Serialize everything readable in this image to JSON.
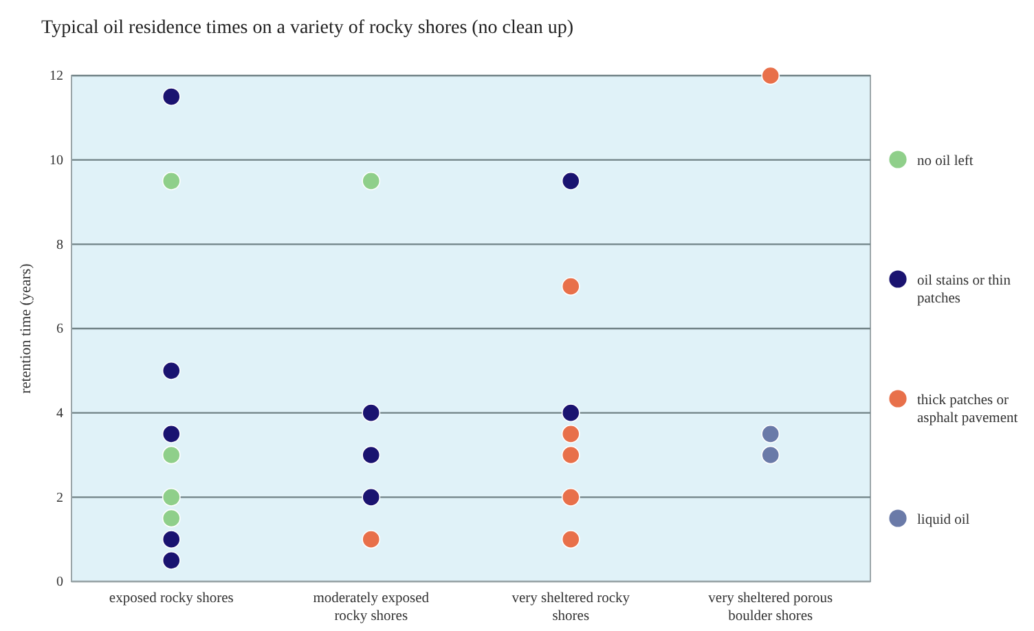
{
  "chart_data": {
    "type": "scatter",
    "title": "Typical oil residence times on a variety of rocky shores (no clean up)",
    "ylabel": "retention time (years)",
    "categories": [
      "exposed rocky shores",
      "moderately exposed rocky shores",
      "very sheltered rocky shores",
      "very sheltered porous boulder shores"
    ],
    "ylim": [
      0,
      12
    ],
    "yticks": [
      0,
      2,
      4,
      6,
      8,
      10,
      12
    ],
    "grid": "y",
    "legend": "right",
    "marker": "circle",
    "series": [
      {
        "name": "no oil left",
        "color": "#8fcf8a",
        "x": [
          "exposed rocky shores",
          "exposed rocky shores",
          "exposed rocky shores",
          "exposed rocky shores",
          "moderately exposed rocky shores"
        ],
        "values": [
          9.5,
          3,
          2,
          1.5,
          9.5
        ]
      },
      {
        "name": "oil stains or thin patches",
        "color": "#1a1370",
        "x": [
          "exposed rocky shores",
          "exposed rocky shores",
          "exposed rocky shores",
          "exposed rocky shores",
          "exposed rocky shores",
          "moderately exposed rocky shores",
          "moderately exposed rocky shores",
          "moderately exposed rocky shores",
          "very sheltered rocky shores",
          "very sheltered rocky shores"
        ],
        "values": [
          11.5,
          5,
          3.5,
          1,
          0.5,
          4,
          3,
          2,
          9.5,
          4
        ]
      },
      {
        "name": "thick patches or asphalt pavement",
        "color": "#e8704a",
        "x": [
          "moderately exposed rocky shores",
          "very sheltered rocky shores",
          "very sheltered rocky shores",
          "very sheltered rocky shores",
          "very sheltered rocky shores",
          "very sheltered rocky shores",
          "very sheltered porous boulder shores"
        ],
        "values": [
          1,
          7,
          3.5,
          3,
          2,
          1,
          12
        ]
      },
      {
        "name": "liquid oil",
        "color": "#6a7aa8",
        "x": [
          "very sheltered porous boulder shores",
          "very sheltered porous boulder shores"
        ],
        "values": [
          3.5,
          3
        ]
      }
    ]
  }
}
